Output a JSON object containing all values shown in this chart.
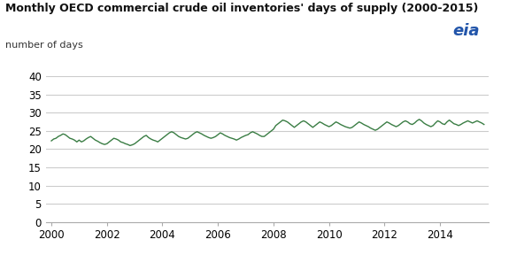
{
  "title": "Monthly OECD commercial crude oil inventories' days of supply (2000-2015)",
  "ylabel": "number of days",
  "line_color": "#3a7d44",
  "bg_color": "#ffffff",
  "grid_color": "#cccccc",
  "ylim": [
    0,
    40
  ],
  "yticks": [
    0,
    5,
    10,
    15,
    20,
    25,
    30,
    35,
    40
  ],
  "xlim_start": 2000.0,
  "xlim_end": 2015.75,
  "xticks": [
    2000,
    2002,
    2004,
    2006,
    2008,
    2010,
    2012,
    2014
  ],
  "values": [
    22.3,
    22.8,
    23.0,
    23.5,
    23.8,
    24.2,
    24.0,
    23.5,
    23.0,
    22.8,
    22.5,
    22.0,
    22.5,
    22.0,
    22.3,
    22.8,
    23.2,
    23.5,
    23.0,
    22.5,
    22.2,
    21.8,
    21.5,
    21.3,
    21.5,
    22.0,
    22.5,
    23.0,
    22.8,
    22.5,
    22.0,
    21.8,
    21.5,
    21.3,
    21.0,
    21.2,
    21.5,
    22.0,
    22.5,
    23.0,
    23.5,
    23.8,
    23.2,
    22.8,
    22.5,
    22.3,
    22.0,
    22.5,
    23.0,
    23.5,
    24.0,
    24.5,
    24.8,
    24.5,
    24.0,
    23.5,
    23.2,
    23.0,
    22.8,
    23.0,
    23.5,
    24.0,
    24.5,
    24.8,
    24.5,
    24.2,
    23.8,
    23.5,
    23.2,
    23.0,
    23.2,
    23.5,
    24.0,
    24.5,
    24.2,
    23.8,
    23.5,
    23.2,
    23.0,
    22.8,
    22.5,
    22.8,
    23.2,
    23.5,
    23.8,
    24.0,
    24.5,
    24.8,
    24.5,
    24.2,
    23.8,
    23.5,
    23.5,
    24.0,
    24.5,
    25.0,
    25.5,
    26.5,
    27.0,
    27.5,
    28.0,
    27.8,
    27.5,
    27.0,
    26.5,
    26.0,
    26.5,
    27.0,
    27.5,
    27.8,
    27.5,
    27.0,
    26.5,
    26.0,
    26.5,
    27.0,
    27.5,
    27.2,
    26.8,
    26.5,
    26.2,
    26.5,
    27.0,
    27.5,
    27.2,
    26.8,
    26.5,
    26.2,
    26.0,
    25.8,
    26.0,
    26.5,
    27.0,
    27.5,
    27.2,
    26.8,
    26.5,
    26.2,
    25.8,
    25.5,
    25.2,
    25.5,
    26.0,
    26.5,
    27.0,
    27.5,
    27.2,
    26.8,
    26.5,
    26.2,
    26.5,
    27.0,
    27.5,
    27.8,
    27.5,
    27.0,
    26.8,
    27.2,
    27.8,
    28.2,
    27.8,
    27.2,
    26.8,
    26.5,
    26.2,
    26.5,
    27.2,
    27.8,
    27.5,
    27.0,
    26.8,
    27.5,
    28.0,
    27.5,
    27.0,
    26.8,
    26.5,
    26.8,
    27.2,
    27.5,
    27.8,
    27.5,
    27.2,
    27.5,
    27.8,
    27.5,
    27.2,
    26.8
  ]
}
